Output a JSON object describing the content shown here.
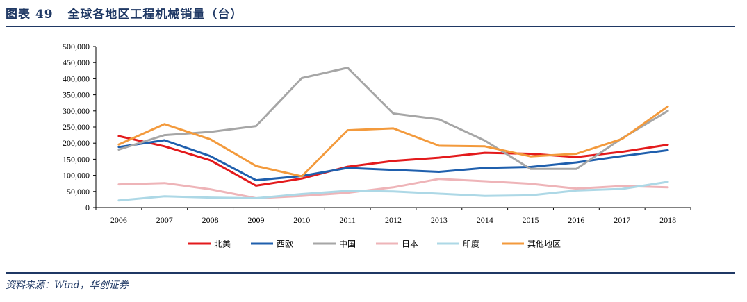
{
  "header": {
    "title": "图表 49   全球各地区工程机械销量（台）"
  },
  "source": {
    "text": "资料来源：Wind，华创证券"
  },
  "chart_data": {
    "type": "line",
    "title": "全球各地区工程机械销量（台）",
    "xlabel": "",
    "ylabel": "",
    "ylim": [
      0,
      500000
    ],
    "ytick_step": 50000,
    "ytick_labels": [
      "0",
      "50,000",
      "100,000",
      "150,000",
      "200,000",
      "250,000",
      "300,000",
      "350,000",
      "400,000",
      "450,000",
      "500,000"
    ],
    "grid": false,
    "legend_position": "bottom",
    "x": [
      "2006",
      "2007",
      "2008",
      "2009",
      "2010",
      "2011",
      "2012",
      "2013",
      "2014",
      "2015",
      "2016",
      "2017",
      "2018"
    ],
    "series": [
      {
        "name": "北美",
        "color": "#e31a1c",
        "values": [
          222000,
          190000,
          147000,
          68000,
          90000,
          127000,
          145000,
          155000,
          170000,
          167000,
          157000,
          173000,
          195000
        ]
      },
      {
        "name": "西欧",
        "color": "#1f5fad",
        "values": [
          188000,
          209000,
          160000,
          85000,
          98000,
          123000,
          117000,
          111000,
          123000,
          126000,
          140000,
          160000,
          178000
        ]
      },
      {
        "name": "中国",
        "color": "#a6a6a6",
        "values": [
          180000,
          225000,
          235000,
          253000,
          402000,
          434000,
          292000,
          274000,
          208000,
          120000,
          120000,
          215000,
          300000
        ]
      },
      {
        "name": "日本",
        "color": "#eeb4b8",
        "values": [
          72000,
          76000,
          57000,
          29000,
          36000,
          46000,
          63000,
          89000,
          82000,
          74000,
          59000,
          67000,
          63000
        ]
      },
      {
        "name": "印度",
        "color": "#add8e6",
        "values": [
          22000,
          35000,
          31000,
          29000,
          42000,
          52000,
          50000,
          43000,
          36000,
          38000,
          53000,
          58000,
          80000
        ]
      },
      {
        "name": "其他地区",
        "color": "#f39a3c",
        "values": [
          196000,
          259000,
          212000,
          129000,
          97000,
          240000,
          246000,
          192000,
          190000,
          159000,
          167000,
          213000,
          314000
        ]
      }
    ]
  }
}
